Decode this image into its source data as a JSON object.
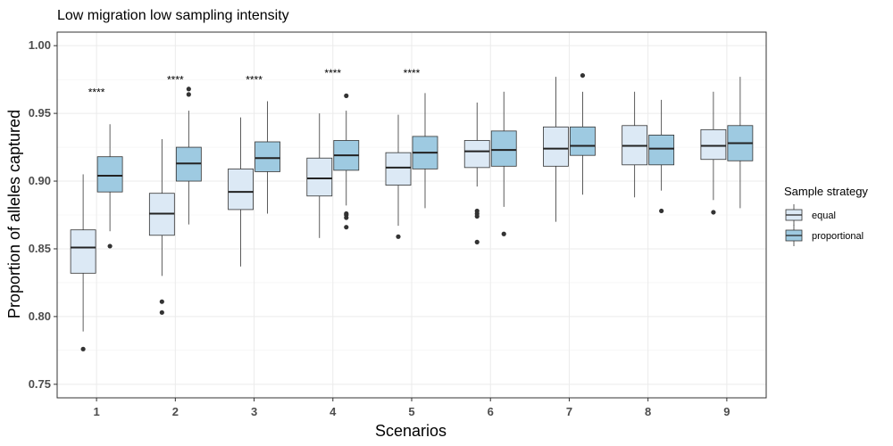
{
  "chart_data": {
    "type": "boxplot",
    "title": "Low migration low sampling intensity",
    "xlabel": "Scenarios",
    "ylabel": "Proportion of alleles captured",
    "ylim": [
      0.74,
      1.01
    ],
    "yticks": [
      "0.75",
      "0.80",
      "0.85",
      "0.90",
      "0.95",
      "1.00"
    ],
    "categories": [
      "1",
      "2",
      "3",
      "4",
      "5",
      "6",
      "7",
      "8",
      "9"
    ],
    "grid": true,
    "legend": {
      "title": "Sample strategy",
      "placement": "right"
    },
    "colors": {
      "equal": "#dce9f5",
      "proportional": "#9ecae1",
      "stroke": "#333333",
      "grid": "#ebebeb"
    },
    "series": [
      {
        "name": "equal",
        "boxes": [
          {
            "whislo": 0.789,
            "q1": 0.832,
            "med": 0.851,
            "q3": 0.864,
            "whishi": 0.905,
            "outliers": [
              0.776
            ]
          },
          {
            "whislo": 0.83,
            "q1": 0.86,
            "med": 0.876,
            "q3": 0.891,
            "whishi": 0.931,
            "outliers": [
              0.811,
              0.803
            ]
          },
          {
            "whislo": 0.837,
            "q1": 0.879,
            "med": 0.892,
            "q3": 0.909,
            "whishi": 0.947,
            "outliers": []
          },
          {
            "whislo": 0.858,
            "q1": 0.889,
            "med": 0.902,
            "q3": 0.917,
            "whishi": 0.95,
            "outliers": []
          },
          {
            "whislo": 0.867,
            "q1": 0.897,
            "med": 0.91,
            "q3": 0.921,
            "whishi": 0.949,
            "outliers": [
              0.859
            ]
          },
          {
            "whislo": 0.896,
            "q1": 0.91,
            "med": 0.922,
            "q3": 0.93,
            "whishi": 0.958,
            "outliers": [
              0.878,
              0.876,
              0.874,
              0.855
            ]
          },
          {
            "whislo": 0.87,
            "q1": 0.911,
            "med": 0.924,
            "q3": 0.94,
            "whishi": 0.977,
            "outliers": []
          },
          {
            "whislo": 0.888,
            "q1": 0.912,
            "med": 0.926,
            "q3": 0.941,
            "whishi": 0.966,
            "outliers": []
          },
          {
            "whislo": 0.886,
            "q1": 0.916,
            "med": 0.926,
            "q3": 0.938,
            "whishi": 0.966,
            "outliers": [
              0.877
            ]
          }
        ]
      },
      {
        "name": "proportional",
        "boxes": [
          {
            "whislo": 0.863,
            "q1": 0.892,
            "med": 0.904,
            "q3": 0.918,
            "whishi": 0.942,
            "outliers": [
              0.852
            ]
          },
          {
            "whislo": 0.868,
            "q1": 0.9,
            "med": 0.913,
            "q3": 0.925,
            "whishi": 0.952,
            "outliers": [
              0.968,
              0.964
            ]
          },
          {
            "whislo": 0.876,
            "q1": 0.907,
            "med": 0.917,
            "q3": 0.929,
            "whishi": 0.959,
            "outliers": []
          },
          {
            "whislo": 0.882,
            "q1": 0.908,
            "med": 0.919,
            "q3": 0.93,
            "whishi": 0.952,
            "outliers": [
              0.963,
              0.876,
              0.875,
              0.873,
              0.866
            ]
          },
          {
            "whislo": 0.88,
            "q1": 0.909,
            "med": 0.921,
            "q3": 0.933,
            "whishi": 0.965,
            "outliers": []
          },
          {
            "whislo": 0.881,
            "q1": 0.911,
            "med": 0.923,
            "q3": 0.937,
            "whishi": 0.966,
            "outliers": [
              0.861
            ]
          },
          {
            "whislo": 0.89,
            "q1": 0.919,
            "med": 0.926,
            "q3": 0.94,
            "whishi": 0.966,
            "outliers": [
              0.978
            ]
          },
          {
            "whislo": 0.893,
            "q1": 0.912,
            "med": 0.924,
            "q3": 0.934,
            "whishi": 0.96,
            "outliers": [
              0.878
            ]
          },
          {
            "whislo": 0.88,
            "q1": 0.915,
            "med": 0.928,
            "q3": 0.941,
            "whishi": 0.977,
            "outliers": []
          }
        ]
      }
    ],
    "annotations": [
      {
        "category": "1",
        "text": "****",
        "y": 0.963
      },
      {
        "category": "2",
        "text": "****",
        "y": 0.972
      },
      {
        "category": "3",
        "text": "****",
        "y": 0.972
      },
      {
        "category": "4",
        "text": "****",
        "y": 0.977
      },
      {
        "category": "5",
        "text": "****",
        "y": 0.977
      }
    ]
  }
}
